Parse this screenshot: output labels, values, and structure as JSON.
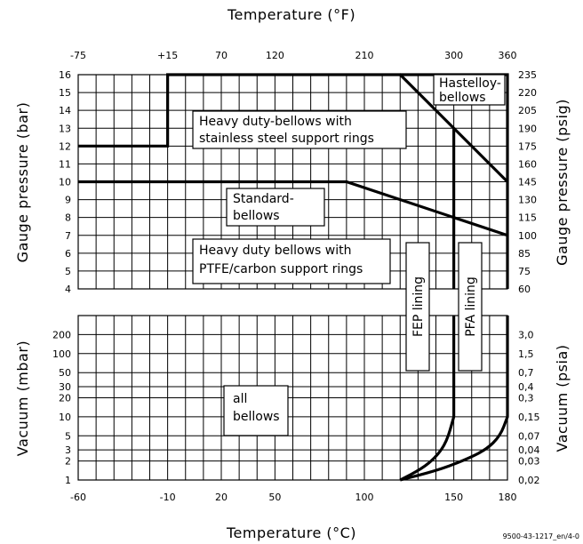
{
  "chart_data": {
    "type": "line",
    "title": "",
    "top_axis_title": "Temperature (°F)",
    "bottom_axis_title": "Temperature (°C)",
    "left_top_title": "Gauge pressure (bar)",
    "left_bottom_title": "Vacuum (mbar)",
    "right_top_title": "Gauge pressure (psig)",
    "right_bottom_title": "Vacuum (psia)",
    "x_range_c": [
      -60,
      180
    ],
    "bottom_ticks": [
      "-60",
      "-10",
      "20",
      "50",
      "100",
      "150",
      "180"
    ],
    "top_ticks": [
      {
        "c": -60,
        "label": "-75"
      },
      {
        "c": -10,
        "label": "+15"
      },
      {
        "c": 20,
        "label": "70"
      },
      {
        "c": 50,
        "label": "120"
      },
      {
        "c": 100,
        "label": "210"
      },
      {
        "c": 150,
        "label": "300"
      },
      {
        "c": 180,
        "label": "360"
      }
    ],
    "pressure_range_bar": [
      4,
      16
    ],
    "pressure_ticks": [
      "16",
      "15",
      "14",
      "13",
      "12",
      "11",
      "10",
      "9",
      "8",
      "7",
      "6",
      "5",
      "4"
    ],
    "psig_ticks": [
      {
        "bar": 16,
        "label": "235"
      },
      {
        "bar": 15,
        "label": "220"
      },
      {
        "bar": 14,
        "label": "205"
      },
      {
        "bar": 13,
        "label": "190"
      },
      {
        "bar": 12,
        "label": "175"
      },
      {
        "bar": 11,
        "label": "160"
      },
      {
        "bar": 10,
        "label": "145"
      },
      {
        "bar": 9,
        "label": "130"
      },
      {
        "bar": 8,
        "label": "115"
      },
      {
        "bar": 7,
        "label": "100"
      },
      {
        "bar": 6,
        "label": "85"
      },
      {
        "bar": 5,
        "label": "75"
      },
      {
        "bar": 4,
        "label": "60"
      }
    ],
    "vacuum_ticks": [
      {
        "mbar": 200,
        "label": "200"
      },
      {
        "mbar": 100,
        "label": "100"
      },
      {
        "mbar": 50,
        "label": "50"
      },
      {
        "mbar": 30,
        "label": "30"
      },
      {
        "mbar": 20,
        "label": "20"
      },
      {
        "mbar": 10,
        "label": "10"
      },
      {
        "mbar": 5,
        "label": "5"
      },
      {
        "mbar": 3,
        "label": "3"
      },
      {
        "mbar": 2,
        "label": "2"
      },
      {
        "mbar": 1,
        "label": "1"
      }
    ],
    "psia_ticks": [
      {
        "mbar": 200,
        "label": "3,0"
      },
      {
        "mbar": 100,
        "label": "1,5"
      },
      {
        "mbar": 50,
        "label": "0,7"
      },
      {
        "mbar": 30,
        "label": "0,4"
      },
      {
        "mbar": 20,
        "label": "0,3"
      },
      {
        "mbar": 10,
        "label": "0,15"
      },
      {
        "mbar": 5,
        "label": "0,07"
      },
      {
        "mbar": 3,
        "label": "0,04"
      },
      {
        "mbar": 2,
        "label": "0,03"
      },
      {
        "mbar": 1,
        "label": "0,02"
      }
    ],
    "series": [
      {
        "name": "Heavy duty-bellows with stainless steel support rings",
        "segment": "pressure",
        "x": [
          -60,
          -10,
          -10,
          120,
          180
        ],
        "y": [
          12,
          12,
          16,
          16,
          10
        ]
      },
      {
        "name": "Standard-bellows",
        "segment": "pressure",
        "x": [
          -60,
          90,
          180
        ],
        "y": [
          10,
          10,
          7
        ]
      },
      {
        "name": "Hastelloy-bellows",
        "segment": "pressure",
        "x": [
          120,
          180,
          180
        ],
        "y": [
          16,
          16,
          4
        ]
      },
      {
        "name": "FEP lining",
        "segment": "pressure",
        "x": [
          150,
          150
        ],
        "y": [
          13,
          4
        ]
      },
      {
        "name": "FEP lining",
        "segment": "vacuum",
        "x": [
          150,
          150,
          146,
          140,
          132,
          120
        ],
        "y_mbar": [
          400,
          10,
          4,
          2.3,
          1.5,
          1
        ]
      },
      {
        "name": "PFA lining",
        "segment": "vacuum",
        "x": [
          180,
          180,
          176,
          168,
          155,
          140,
          120
        ],
        "y_mbar": [
          400,
          10,
          5,
          3,
          2,
          1.4,
          1
        ]
      }
    ],
    "labels": [
      {
        "lines": [
          "Hastelloy-",
          "bellows"
        ]
      },
      {
        "lines": [
          "Heavy duty-bellows with",
          "stainless steel support rings"
        ]
      },
      {
        "lines": [
          "Standard-",
          "bellows"
        ]
      },
      {
        "lines": [
          "Heavy duty bellows with",
          "PTFE/carbon support rings"
        ]
      },
      {
        "lines": [
          "all",
          "bellows"
        ]
      },
      {
        "lines": [
          "FEP lining"
        ],
        "vertical": true
      },
      {
        "lines": [
          "PFA lining"
        ],
        "vertical": true
      }
    ],
    "footer": "9500-43-1217_en/4-0"
  }
}
